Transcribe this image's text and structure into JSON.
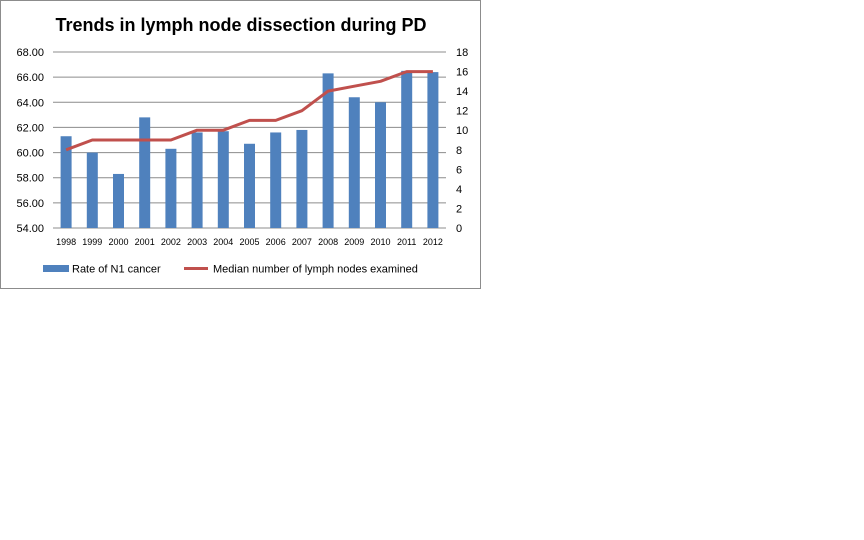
{
  "chart_data": {
    "type": "bar+line",
    "title": "Trends in lymph node dissection during PD",
    "categories": [
      "1998",
      "1999",
      "2000",
      "2001",
      "2002",
      "2003",
      "2004",
      "2005",
      "2006",
      "2007",
      "2008",
      "2009",
      "2010",
      "2011",
      "2012"
    ],
    "series": [
      {
        "name": "Rate of N1 cancer",
        "type": "bar",
        "axis": "left",
        "color": "#4f81bd",
        "values": [
          61.3,
          60.0,
          58.3,
          62.8,
          60.3,
          61.6,
          61.7,
          60.7,
          61.6,
          61.8,
          66.3,
          64.4,
          64.0,
          66.5,
          66.4
        ]
      },
      {
        "name": "Median number of lymph nodes examined",
        "type": "line",
        "axis": "right",
        "color": "#c0504d",
        "values": [
          8,
          9,
          9,
          9,
          9,
          10,
          10,
          11,
          11,
          12,
          14,
          14.5,
          15,
          16,
          16
        ]
      }
    ],
    "y_left": {
      "min": 54,
      "max": 68,
      "step": 2,
      "ticks": [
        "54.00",
        "56.00",
        "58.00",
        "60.00",
        "62.00",
        "64.00",
        "66.00",
        "68.00"
      ]
    },
    "y_right": {
      "min": 0,
      "max": 18,
      "step": 2,
      "ticks": [
        "0",
        "2",
        "4",
        "6",
        "8",
        "10",
        "12",
        "14",
        "16",
        "18"
      ]
    },
    "grid": true,
    "legend_position": "bottom"
  }
}
